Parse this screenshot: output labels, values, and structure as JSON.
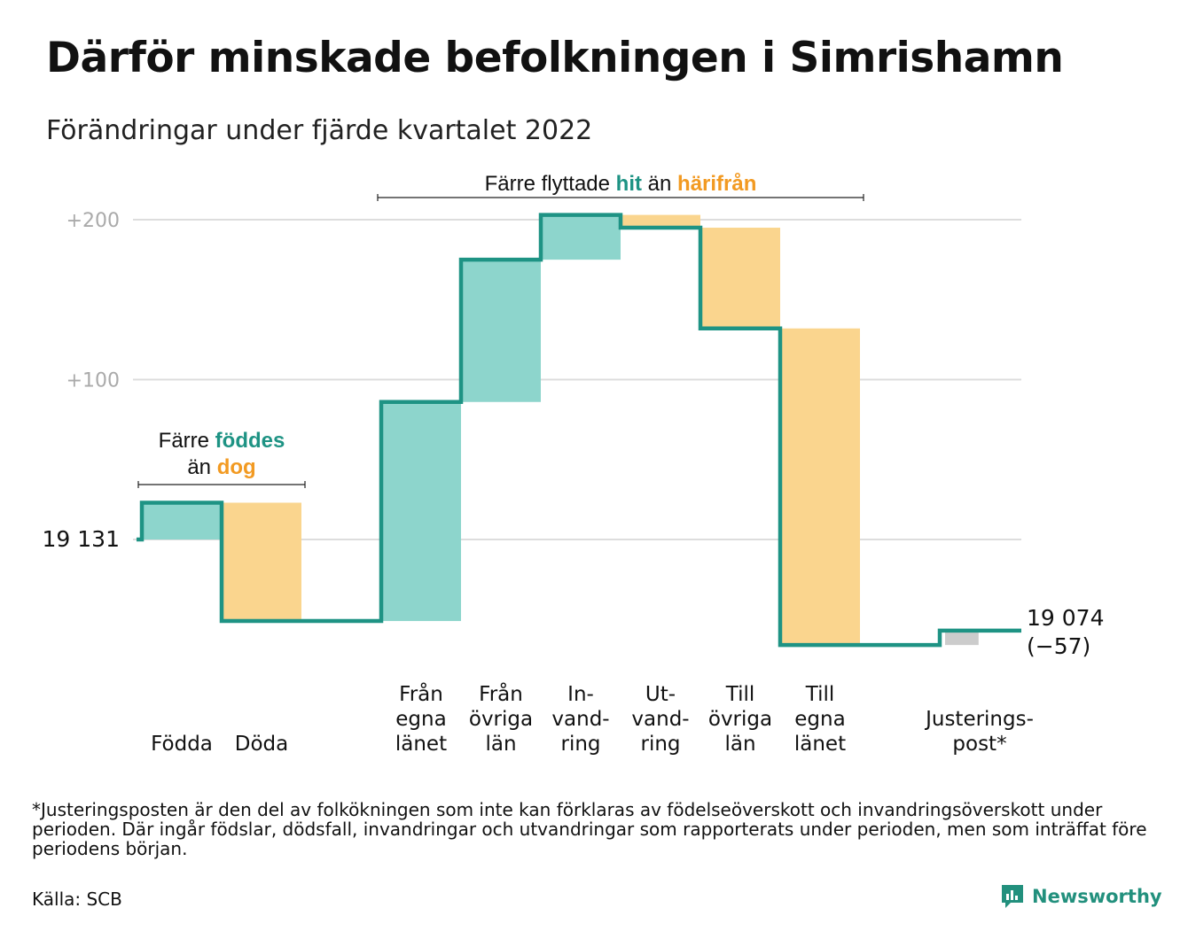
{
  "title": "Därför minskade befolkningen i Simrishamn",
  "subtitle": "Förändringar under fjärde kvartalet 2022",
  "footnote": "*Justeringsposten är den del av folkökningen som inte kan förklaras av födelseöverskott och invandringsöverskott under perioden. Där ingår födslar, dödsfall, invandringar och utvandringar som rapporterats under perioden, men som inträffat före periodens början.",
  "source": "Källa: SCB",
  "brand": {
    "name": "Newsworthy",
    "icon": "newsworthy-logo-icon"
  },
  "colors": {
    "inflow": "#8dd5cc",
    "outflow": "#fad58e",
    "adjustment": "#cccccc",
    "line": "#1e9384",
    "text_green": "#1e9384",
    "text_orange": "#f29a22",
    "grid": "#dddddd",
    "tick": "#aaaaaa"
  },
  "chart_data": {
    "type": "waterfall",
    "baseline": {
      "value": 19131,
      "label": "19 131"
    },
    "end": {
      "value": 19074,
      "label": "19 074",
      "change_label": "(−57)"
    },
    "y_ticks": [
      {
        "value": 200,
        "label": "+200"
      },
      {
        "value": 100,
        "label": "+100"
      }
    ],
    "ylim": [
      -80,
      235
    ],
    "bars": [
      {
        "name": "fodda",
        "label": [
          "Födda"
        ],
        "value": 23,
        "kind": "in"
      },
      {
        "name": "doda",
        "label": [
          "Döda"
        ],
        "value": -74,
        "kind": "out"
      },
      {
        "name": "fran-egna-lanet",
        "label": [
          "Från",
          "egna",
          "länet"
        ],
        "value": 137,
        "kind": "in"
      },
      {
        "name": "fran-ovriga-lan",
        "label": [
          "Från",
          "övriga",
          "län"
        ],
        "value": 89,
        "kind": "in"
      },
      {
        "name": "invandring",
        "label": [
          "In-",
          "vand-",
          "ring"
        ],
        "value": 28,
        "kind": "in"
      },
      {
        "name": "utvandring",
        "label": [
          "Ut-",
          "vand-",
          "ring"
        ],
        "value": -8,
        "kind": "out"
      },
      {
        "name": "till-ovriga-lan",
        "label": [
          "Till",
          "övriga",
          "län"
        ],
        "value": -63,
        "kind": "out"
      },
      {
        "name": "till-egna-lanet",
        "label": [
          "Till",
          "egna",
          "länet"
        ],
        "value": -198,
        "kind": "out"
      },
      {
        "name": "justeringspost",
        "label": [
          "Justerings-",
          "post*"
        ],
        "value": 9,
        "kind": "adj"
      }
    ],
    "annotations": [
      {
        "name": "births-deaths",
        "lines": [
          [
            {
              "text": "Färre "
            },
            {
              "text": "föddes",
              "color": "green"
            }
          ],
          [
            {
              "text": "än "
            },
            {
              "text": "dog",
              "color": "orange"
            }
          ]
        ],
        "from_bar": 0,
        "to_bar": 1
      },
      {
        "name": "migration",
        "lines": [
          [
            {
              "text": "Färre flyttade "
            },
            {
              "text": "hit",
              "color": "green"
            },
            {
              "text": " än "
            },
            {
              "text": "härifrån",
              "color": "orange"
            }
          ]
        ],
        "from_bar": 2,
        "to_bar": 7
      }
    ]
  }
}
